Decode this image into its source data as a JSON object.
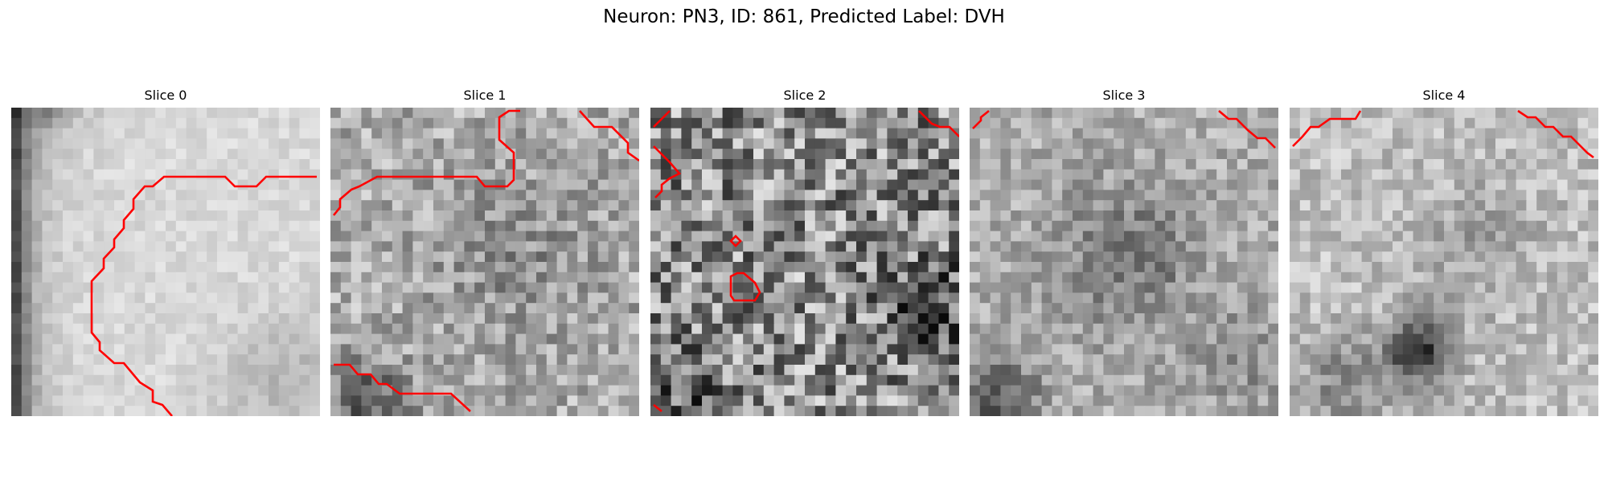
{
  "figure": {
    "title": "Neuron: PN3, ID: 861, Predicted Label: DVH",
    "slices": [
      {
        "title": "Slice 0",
        "texture": "bright with dark left border",
        "contour_color": "#ff0000"
      },
      {
        "title": "Slice 1",
        "texture": "medium gray noise",
        "contour_color": "#ff0000"
      },
      {
        "title": "Slice 2",
        "texture": "high-contrast noise",
        "contour_color": "#ff0000"
      },
      {
        "title": "Slice 3",
        "texture": "medium gray with darker center",
        "contour_color": "#ff0000"
      },
      {
        "title": "Slice 4",
        "texture": "light gray with dark blob lower center",
        "contour_color": "#ff0000"
      }
    ]
  }
}
